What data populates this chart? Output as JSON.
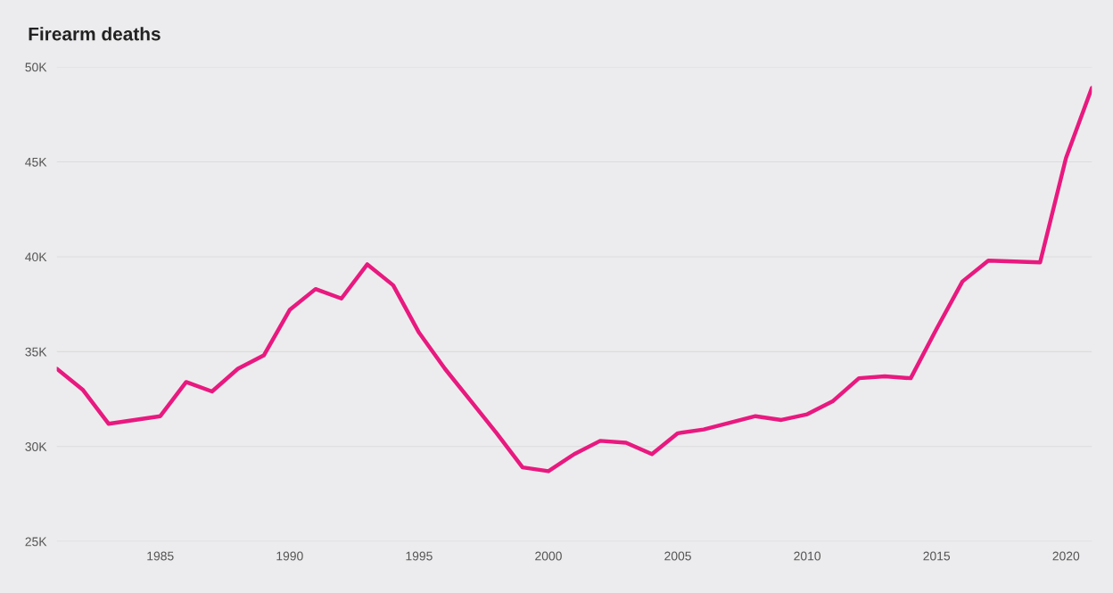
{
  "chart_data": {
    "type": "line",
    "title": "Firearm deaths",
    "x": [
      1981,
      1982,
      1983,
      1984,
      1985,
      1986,
      1987,
      1988,
      1989,
      1990,
      1991,
      1992,
      1993,
      1994,
      1995,
      1996,
      1997,
      1998,
      1999,
      2000,
      2001,
      2002,
      2003,
      2004,
      2005,
      2006,
      2007,
      2008,
      2009,
      2010,
      2011,
      2012,
      2013,
      2014,
      2015,
      2016,
      2017,
      2018,
      2019,
      2020,
      2021
    ],
    "series": [
      {
        "color": "#e8197f",
        "values": [
          34100,
          33000,
          31200,
          31400,
          31600,
          33400,
          32900,
          34100,
          34800,
          37200,
          38300,
          37800,
          39600,
          38500,
          36000,
          34100,
          32400,
          30700,
          28900,
          28700,
          29600,
          30300,
          30200,
          29600,
          30700,
          30900,
          31250,
          31600,
          31400,
          31700,
          32400,
          33600,
          33700,
          33600,
          36200,
          38700,
          39800,
          39750,
          39700,
          45200,
          48900
        ]
      }
    ],
    "xlim": [
      1981,
      2021
    ],
    "xticks": [
      1985,
      1990,
      1995,
      2000,
      2005,
      2010,
      2015,
      2020
    ],
    "ylim": [
      25000,
      50000
    ],
    "yticks": [
      {
        "value": 25000,
        "label": "25K"
      },
      {
        "value": 30000,
        "label": "30K"
      },
      {
        "value": 35000,
        "label": "35K"
      },
      {
        "value": 40000,
        "label": "40K"
      },
      {
        "value": 45000,
        "label": "45K"
      },
      {
        "value": 50000,
        "label": "50K"
      }
    ],
    "grid": "y",
    "marker": "none",
    "line_style": "solid"
  }
}
